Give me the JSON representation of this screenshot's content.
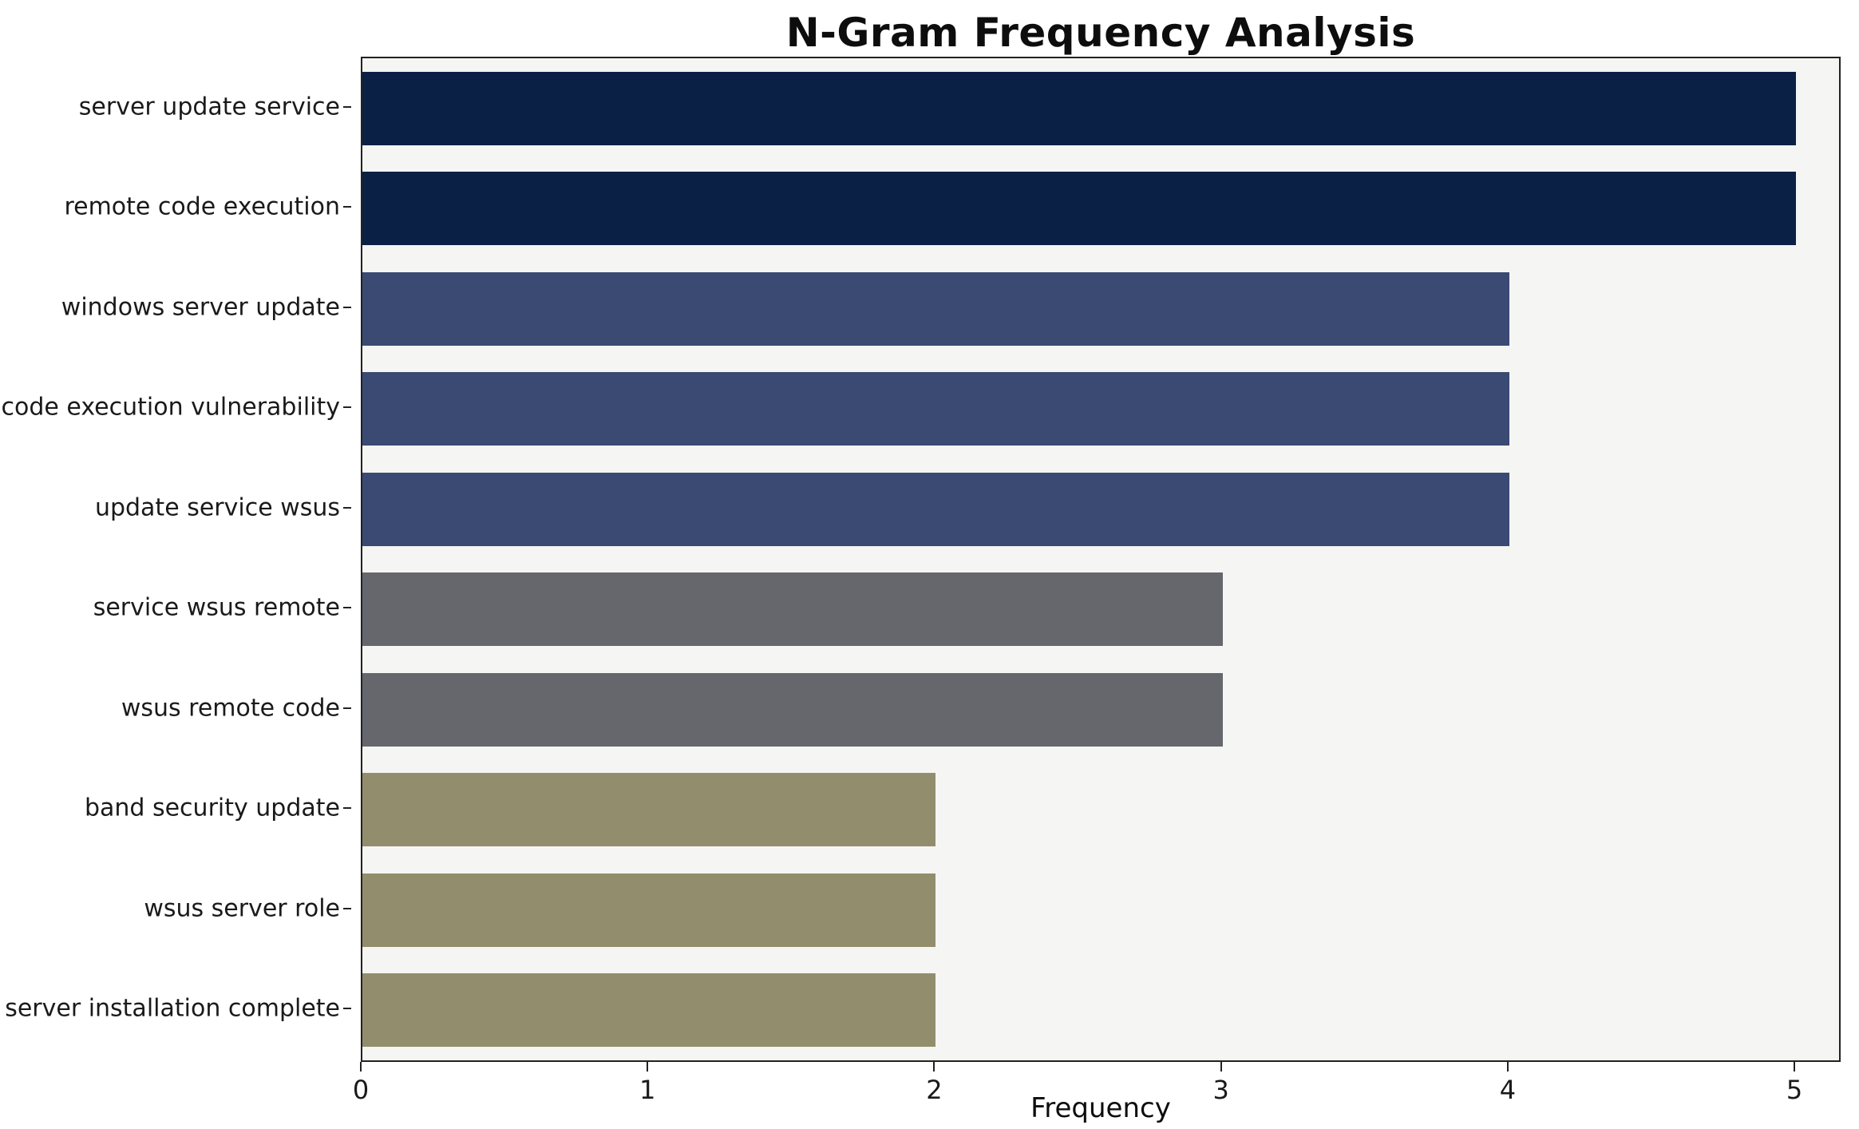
{
  "chart_data": {
    "type": "bar",
    "orientation": "horizontal",
    "title": "N-Gram Frequency Analysis",
    "xlabel": "Frequency",
    "ylabel": "",
    "categories": [
      "server update service",
      "remote code execution",
      "windows server update",
      "code execution vulnerability",
      "update service wsus",
      "service wsus remote",
      "wsus remote code",
      "band security update",
      "wsus server role",
      "server installation complete"
    ],
    "values": [
      5,
      5,
      4,
      4,
      4,
      3,
      3,
      2,
      2,
      2
    ],
    "bar_colors": [
      "#0a2044",
      "#0a2044",
      "#3a4a73",
      "#3a4a73",
      "#3a4a73",
      "#66676d",
      "#66676d",
      "#928d6c",
      "#928d6c",
      "#928d6c"
    ],
    "xlim": [
      0,
      5.15
    ],
    "xticks": [
      0,
      1,
      2,
      3,
      4,
      5
    ],
    "grid": false,
    "legend": null,
    "plot_background": "#f5f5f3",
    "page_background": "#ffffff"
  }
}
